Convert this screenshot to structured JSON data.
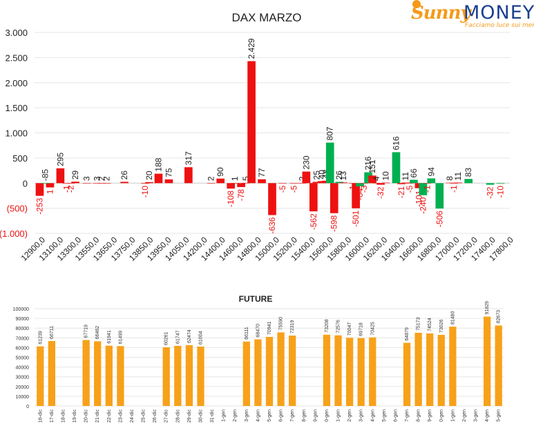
{
  "logo": {
    "brand_part1": "Sunny",
    "brand_part2": "MONEY",
    "tagline": "Facciamo luce sui mercati",
    "colors": {
      "orange": "#f59a1a",
      "blue": "#1b3f8f"
    }
  },
  "chart_data": [
    {
      "type": "bar",
      "title": "DAX MARZO",
      "xlabel": "",
      "ylabel": "",
      "ylim": [
        -1000,
        3000
      ],
      "y_ticks": [
        3000,
        2500,
        2000,
        1500,
        1000,
        500,
        0,
        -500,
        -1000
      ],
      "y_tick_labels": [
        "3.000",
        "2.500",
        "2.000",
        "1.500",
        "1.000",
        "500",
        "0",
        "(500)",
        "(1.000)"
      ],
      "x_tick_labels": [
        "12900,0",
        "13100,0",
        "13300,0",
        "13550,0",
        "13650,0",
        "13750,0",
        "13850,0",
        "13950,0",
        "14050,0",
        "14200,0",
        "14400,0",
        "14600,0",
        "14800,0",
        "15000,0",
        "15200,0",
        "15400,0",
        "15600,0",
        "15800,0",
        "16000,0",
        "16200,0",
        "16400,0",
        "16600,0",
        "16800,0",
        "17000,0",
        "17200,0",
        "17400,0",
        "17800,0"
      ],
      "grid": true,
      "colors": {
        "call": "#00b050",
        "put": "#ee1111",
        "put_label": "#ee1111",
        "call_label": "#222222"
      },
      "series": [
        {
          "values": [
            {
              "x": 0.0,
              "v": -253,
              "k": "p"
            },
            {
              "x": 1.0,
              "v": -85,
              "k": "p"
            },
            {
              "x": 0.55,
              "v": 1,
              "k": "c"
            },
            {
              "x": 2.0,
              "v": 295,
              "k": "p"
            },
            {
              "x": 2.6,
              "v": -1,
              "k": "p"
            },
            {
              "x": 3.0,
              "v": -2,
              "k": "p"
            },
            {
              "x": 3.45,
              "v": 29,
              "k": "p"
            },
            {
              "x": 4.55,
              "v": 3,
              "k": "p"
            },
            {
              "x": 5.55,
              "v": 3,
              "k": "p"
            },
            {
              "x": 6.0,
              "v": 2,
              "k": "p"
            },
            {
              "x": 6.5,
              "v": 2,
              "k": "p"
            },
            {
              "x": 8.2,
              "v": 26,
              "k": "p"
            },
            {
              "x": 10.2,
              "v": -10,
              "k": "p"
            },
            {
              "x": 10.6,
              "v": 20,
              "k": "p"
            },
            {
              "x": 11.5,
              "v": 188,
              "k": "p"
            },
            {
              "x": 12.5,
              "v": 75,
              "k": "p"
            },
            {
              "x": 14.4,
              "v": 317,
              "k": "p"
            },
            {
              "x": 16.6,
              "v": 2,
              "k": "p"
            },
            {
              "x": 17.5,
              "v": 90,
              "k": "p"
            },
            {
              "x": 18.5,
              "v": -108,
              "k": "p"
            },
            {
              "x": 18.9,
              "v": 1,
              "k": "p"
            },
            {
              "x": 19.5,
              "v": -78,
              "k": "p"
            },
            {
              "x": 19.95,
              "v": 5,
              "k": "p"
            },
            {
              "x": 20.5,
              "v": 2429,
              "k": "p"
            },
            {
              "x": 21.5,
              "v": 77,
              "k": "p"
            },
            {
              "x": 22.5,
              "v": -636,
              "k": "p"
            },
            {
              "x": 23.5,
              "v": -5,
              "k": "p"
            },
            {
              "x": 24.6,
              "v": -5,
              "k": "p"
            },
            {
              "x": 25.4,
              "v": 2,
              "k": "p"
            },
            {
              "x": 25.8,
              "v": 230,
              "k": "p"
            },
            {
              "x": 26.5,
              "v": -562,
              "k": "p"
            },
            {
              "x": 26.8,
              "v": 25,
              "k": "p"
            },
            {
              "x": 27.3,
              "v": 40,
              "k": "p"
            },
            {
              "x": 27.7,
              "v": 48,
              "k": "p"
            },
            {
              "x": 28.1,
              "v": 807,
              "k": "c"
            },
            {
              "x": 28.5,
              "v": -598,
              "k": "p"
            },
            {
              "x": 29.0,
              "v": 26,
              "k": "c"
            },
            {
              "x": 29.4,
              "v": 13,
              "k": "p"
            },
            {
              "x": 30.3,
              "v": -1,
              "k": "p"
            },
            {
              "x": 30.6,
              "v": -501,
              "k": "p"
            },
            {
              "x": 31.0,
              "v": -64,
              "k": "c"
            },
            {
              "x": 31.4,
              "v": -3,
              "k": "p"
            },
            {
              "x": 31.8,
              "v": 216,
              "k": "c"
            },
            {
              "x": 32.2,
              "v": 151,
              "k": "p"
            },
            {
              "x": 32.6,
              "v": 4,
              "k": "p"
            },
            {
              "x": 33.0,
              "v": -32,
              "k": "p"
            },
            {
              "x": 33.5,
              "v": 10,
              "k": "p"
            },
            {
              "x": 34.5,
              "v": 616,
              "k": "c"
            },
            {
              "x": 35.0,
              "v": -21,
              "k": "p"
            },
            {
              "x": 35.4,
              "v": 11,
              "k": "p"
            },
            {
              "x": 35.8,
              "v": -5,
              "k": "p"
            },
            {
              "x": 36.2,
              "v": 66,
              "k": "c"
            },
            {
              "x": 36.7,
              "v": -101,
              "k": "p"
            },
            {
              "x": 37.1,
              "v": -240,
              "k": "c"
            },
            {
              "x": 37.5,
              "v": -1,
              "k": "p"
            },
            {
              "x": 37.9,
              "v": 94,
              "k": "c"
            },
            {
              "x": 38.7,
              "v": -506,
              "k": "c"
            },
            {
              "x": 39.7,
              "v": 8,
              "k": "p"
            },
            {
              "x": 40.1,
              "v": -1,
              "k": "p"
            },
            {
              "x": 40.5,
              "v": 11,
              "k": "p"
            },
            {
              "x": 41.5,
              "v": 83,
              "k": "c"
            },
            {
              "x": 43.6,
              "v": -32,
              "k": "c"
            },
            {
              "x": 44.6,
              "v": -10,
              "k": "c"
            }
          ]
        }
      ],
      "label_texts": [
        "-253",
        "1",
        "-85",
        "295",
        "-1",
        "-2",
        "29",
        "3",
        "3",
        "2",
        "2",
        "26",
        "-10",
        "20",
        "188",
        "75",
        "317",
        "2",
        "90",
        "-108",
        "1",
        "-78",
        "5",
        "2.429",
        "77",
        "-636",
        "-5",
        "-5",
        "2",
        "230",
        "-562",
        "25",
        "40",
        "48",
        "807",
        "-598",
        "26",
        "13",
        "-1",
        "-501",
        "-64",
        "-3",
        "216",
        "151",
        "4",
        "-32",
        "10",
        "616",
        "-21",
        "11",
        "-5",
        "66",
        "-101",
        "-240",
        "-1",
        "94",
        "-506",
        "8",
        "-1",
        "11",
        "83",
        "-32",
        "-10"
      ]
    },
    {
      "type": "bar",
      "title": "FUTURE",
      "xlabel": "",
      "ylabel": "",
      "ylim": [
        0,
        100000
      ],
      "y_ticks": [
        100000,
        90000,
        80000,
        70000,
        60000,
        50000,
        40000,
        30000,
        20000,
        10000,
        0
      ],
      "y_tick_labels": [
        "100000",
        "90000",
        "80000",
        "70000",
        "60000",
        "50000",
        "40000",
        "30000",
        "20000",
        "10000",
        "0"
      ],
      "grid": true,
      "colors": {
        "bar": "#f7a11a"
      },
      "categories": [
        "16-dic",
        "17-dic",
        "18-dic",
        "19-dic",
        "20-dic",
        "21-dic",
        "22-dic",
        "23-dic",
        "24-dic",
        "25-dic",
        "26-dic",
        "27-dic",
        "28-dic",
        "29-dic",
        "30-dic",
        "31-dic",
        "1-gen",
        "2-gen",
        "3-gen",
        "4-gen",
        "5-gen",
        "6-gen",
        "7-gen",
        "8-gen",
        "9-gen",
        "0-gen",
        "1-gen",
        "2-gen",
        "3-gen",
        "4-gen",
        "5-gen",
        "6-gen",
        "7-gen",
        "8-gen",
        "9-gen",
        "0-gen",
        "1-gen",
        "2-gen",
        "3-gen",
        "4-gen",
        "5-gen"
      ],
      "values": [
        61239,
        66711,
        null,
        null,
        67719,
        66462,
        61941,
        61499,
        null,
        null,
        null,
        60261,
        61747,
        62474,
        61004,
        null,
        null,
        null,
        66111,
        68470,
        70941,
        75590,
        72319,
        null,
        null,
        73208,
        72576,
        70047,
        69718,
        70425,
        null,
        null,
        64879,
        75173,
        74524,
        73026,
        81480,
        null,
        null,
        91829,
        82673
      ],
      "value_labels": [
        "61239",
        "66711",
        "",
        "",
        "67719",
        "66462",
        "61941",
        "61499",
        "",
        "",
        "",
        "60261",
        "61747",
        "62474",
        "61004",
        "",
        "",
        "",
        "66111",
        "68470",
        "70941",
        "75590",
        "72319",
        "",
        "",
        "73208",
        "72576",
        "70047",
        "69718",
        "70425",
        "",
        "",
        "64879",
        "75173",
        "74524",
        "73026",
        "81480",
        "",
        "",
        "91829",
        "82673"
      ]
    }
  ]
}
